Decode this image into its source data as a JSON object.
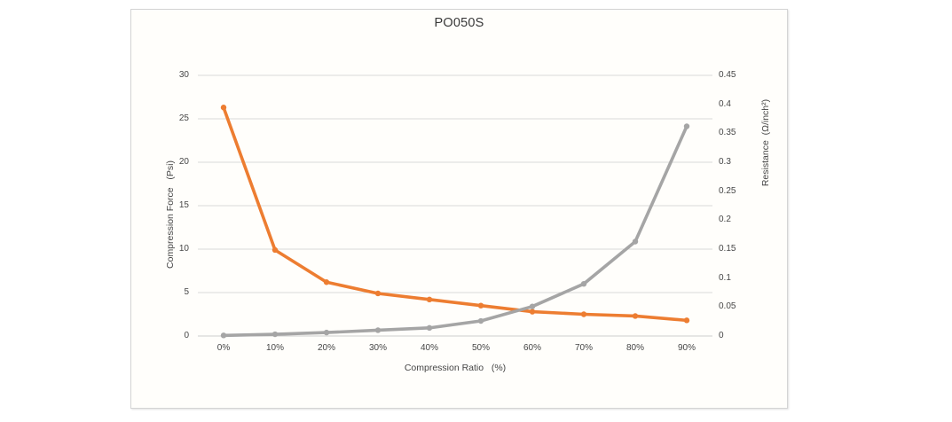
{
  "chart_data": {
    "type": "line",
    "title": "PO050S",
    "categories": [
      "0%",
      "10%",
      "20%",
      "30%",
      "40%",
      "50%",
      "60%",
      "70%",
      "80%",
      "90%"
    ],
    "x_axis": {
      "title": "Compression Ratio   (%)"
    },
    "left_axis": {
      "title": "Compression Force   (Psi)",
      "ticks": [
        "0",
        "5",
        "10",
        "15",
        "20",
        "25",
        "30"
      ],
      "range": [
        0,
        30
      ]
    },
    "right_axis": {
      "title": "Resistance  (Ω/inch²)",
      "ticks": [
        "0",
        "0.05",
        "0.1",
        "0.15",
        "0.2",
        "0.25",
        "0.3",
        "0.35",
        "0.4",
        "0.45"
      ],
      "range": [
        0,
        0.45
      ]
    },
    "series": [
      {
        "name": "Compression Force (Psi)",
        "slug": "compression-force",
        "axis": "left",
        "color": "#ED7D31",
        "marker": "circle",
        "values": [
          26.3,
          9.9,
          6.2,
          4.9,
          4.2,
          3.5,
          2.8,
          2.5,
          2.3,
          1.8
        ]
      },
      {
        "name": "Resistance (Ω/inch²)",
        "slug": "resistance",
        "axis": "right",
        "color": "#A5A5A5",
        "marker": "circle",
        "values": [
          0.001,
          0.003,
          0.006,
          0.01,
          0.014,
          0.026,
          0.051,
          0.09,
          0.163,
          0.362
        ]
      }
    ],
    "grid": true,
    "legend": "none"
  },
  "colors": {
    "gridline": "#D9D9D9",
    "axis_line": "#CDCDCD",
    "tick_text": "#464646",
    "title_text": "#383838",
    "frame_border": "#D4D4D4",
    "background": "#FFFFFF"
  }
}
